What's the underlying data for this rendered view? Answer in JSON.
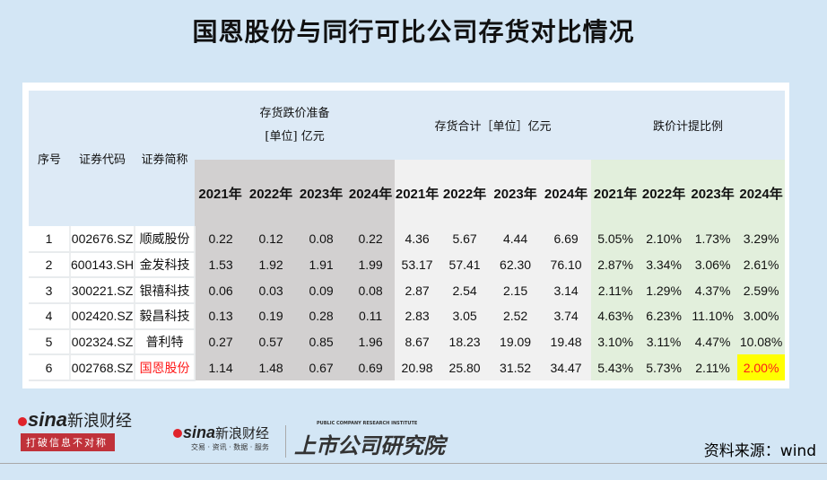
{
  "title": "国恩股份与同行可比公司存货对比情况",
  "headers": {
    "seq": "序号",
    "code": "证券代码",
    "name": "证券简称",
    "group1_line1": "存货跌价准备",
    "group1_line2": "[单位] 亿元",
    "group2": "存货合计［单位］亿元",
    "group3": "跌价计提比例",
    "years": [
      "2021年",
      "2022年",
      "2023年",
      "2024年"
    ]
  },
  "rows": [
    {
      "seq": "1",
      "code": "002676.SZ",
      "name": "顺威股份",
      "provision": [
        "0.22",
        "0.12",
        "0.08",
        "0.22"
      ],
      "inventory": [
        "4.36",
        "5.67",
        "4.44",
        "6.69"
      ],
      "ratio": [
        "5.05%",
        "2.10%",
        "1.73%",
        "3.29%"
      ]
    },
    {
      "seq": "2",
      "code": "600143.SH",
      "name": "金发科技",
      "provision": [
        "1.53",
        "1.92",
        "1.91",
        "1.99"
      ],
      "inventory": [
        "53.17",
        "57.41",
        "62.30",
        "76.10"
      ],
      "ratio": [
        "2.87%",
        "3.34%",
        "3.06%",
        "2.61%"
      ]
    },
    {
      "seq": "3",
      "code": "300221.SZ",
      "name": "银禧科技",
      "provision": [
        "0.06",
        "0.03",
        "0.09",
        "0.08"
      ],
      "inventory": [
        "2.87",
        "2.54",
        "2.15",
        "3.14"
      ],
      "ratio": [
        "2.11%",
        "1.29%",
        "4.37%",
        "2.59%"
      ]
    },
    {
      "seq": "4",
      "code": "002420.SZ",
      "name": "毅昌科技",
      "provision": [
        "0.13",
        "0.19",
        "0.28",
        "0.11"
      ],
      "inventory": [
        "2.83",
        "3.05",
        "2.52",
        "3.74"
      ],
      "ratio": [
        "4.63%",
        "6.23%",
        "11.10%",
        "3.00%"
      ]
    },
    {
      "seq": "5",
      "code": "002324.SZ",
      "name": "普利特",
      "provision": [
        "0.27",
        "0.57",
        "0.85",
        "1.96"
      ],
      "inventory": [
        "8.67",
        "18.23",
        "19.09",
        "19.48"
      ],
      "ratio": [
        "3.10%",
        "3.11%",
        "4.47%",
        "10.08%"
      ]
    },
    {
      "seq": "6",
      "code": "002768.SZ",
      "name": "国恩股份",
      "provision": [
        "1.14",
        "1.48",
        "0.67",
        "0.69"
      ],
      "inventory": [
        "20.98",
        "25.80",
        "31.52",
        "34.47"
      ],
      "ratio": [
        "5.43%",
        "5.73%",
        "2.11%",
        "2.00%"
      ]
    }
  ],
  "highlight_colors": {
    "fill": "#ffff00",
    "text": "#ff1a1a"
  },
  "footer": {
    "source": "资料来源：wind",
    "logo1": {
      "brand": "sina",
      "cn": "新浪财经",
      "tagline": "打破信息不对称"
    },
    "logo2": {
      "brand": "sina",
      "cn": "新浪财经",
      "sub": "交易 · 资讯 · 数据 · 服务"
    },
    "logo3": {
      "cn": "上市公司研究院",
      "en": "PUBLIC COMPANY RESEARCH INSTITUTE"
    }
  }
}
